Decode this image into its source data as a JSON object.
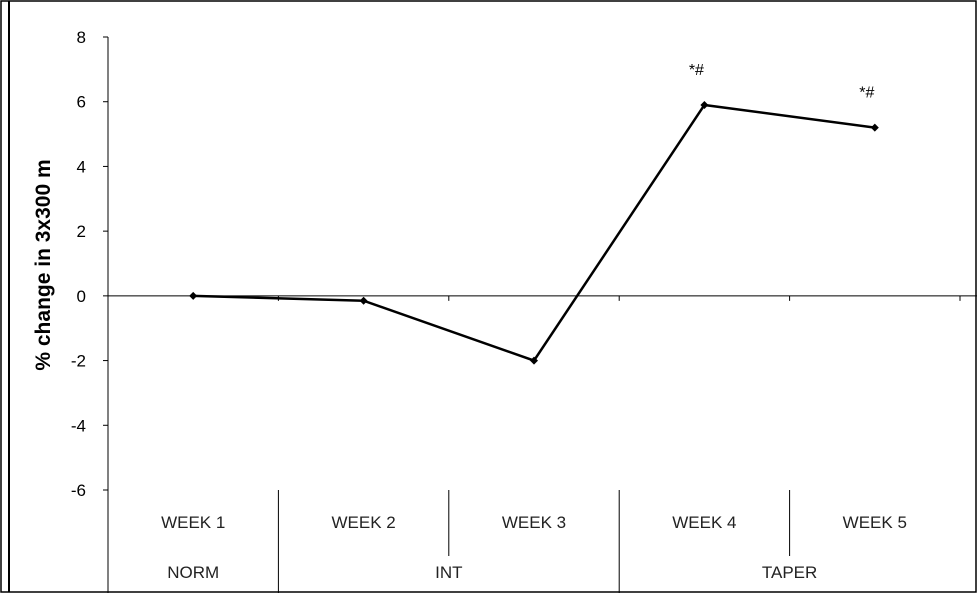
{
  "chart_data": {
    "type": "line",
    "title": "",
    "xlabel": "",
    "ylabel": "% change in 3x300 m",
    "ylim": [
      -6,
      8
    ],
    "yticks": [
      8,
      6,
      4,
      2,
      0,
      -2,
      -4,
      -6
    ],
    "categories": [
      "WEEK 1",
      "WEEK 2",
      "WEEK 3",
      "WEEK 4",
      "WEEK 5"
    ],
    "groups": [
      {
        "label": "NORM",
        "categories": [
          "WEEK 1"
        ]
      },
      {
        "label": "INT",
        "categories": [
          "WEEK 2",
          "WEEK 3"
        ]
      },
      {
        "label": "TAPER",
        "categories": [
          "WEEK 4",
          "WEEK 5"
        ]
      }
    ],
    "series": [
      {
        "values": [
          0.0,
          -0.15,
          -2.0,
          5.9,
          5.2
        ]
      }
    ],
    "annotations": [
      "",
      "",
      "",
      "*#",
      "*#"
    ],
    "grid": false,
    "legend": "none",
    "line_color": "#000000"
  }
}
